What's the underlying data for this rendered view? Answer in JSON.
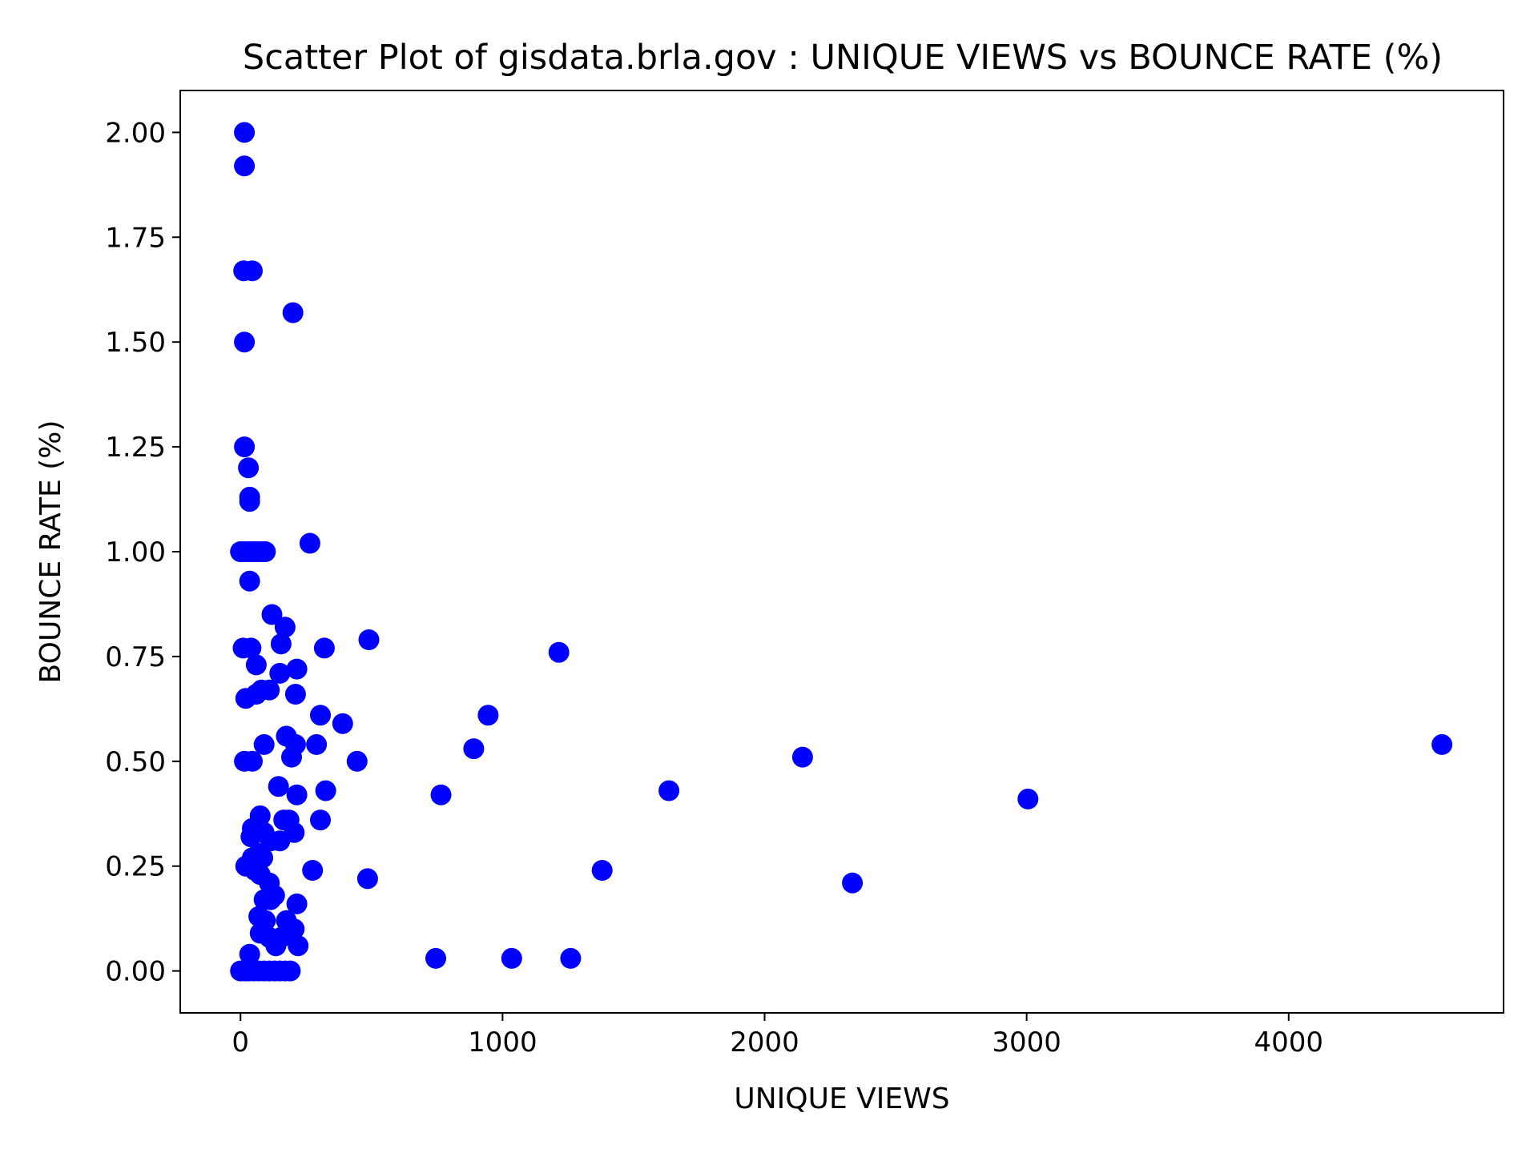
{
  "chart_data": {
    "type": "scatter",
    "title": "Scatter Plot of gisdata.brla.gov : UNIQUE VIEWS vs BOUNCE RATE (%)",
    "xlabel": "UNIQUE VIEWS",
    "ylabel": "BOUNCE RATE (%)",
    "xlim": [
      -230,
      4820
    ],
    "ylim": [
      -0.1,
      2.1
    ],
    "xticks": [
      0,
      1000,
      2000,
      3000,
      4000
    ],
    "xtick_labels": [
      "0",
      "1000",
      "2000",
      "3000",
      "4000"
    ],
    "yticks": [
      0.0,
      0.25,
      0.5,
      0.75,
      1.0,
      1.25,
      1.5,
      1.75,
      2.0
    ],
    "ytick_labels": [
      "0.00",
      "0.25",
      "0.50",
      "0.75",
      "1.00",
      "1.25",
      "1.50",
      "1.75",
      "2.00"
    ],
    "grid": false,
    "marker_color": "#0000ff",
    "points": [
      {
        "x": 15,
        "y": 2.0
      },
      {
        "x": 15,
        "y": 1.92
      },
      {
        "x": 12,
        "y": 1.67
      },
      {
        "x": 45,
        "y": 1.67
      },
      {
        "x": 200,
        "y": 1.57
      },
      {
        "x": 15,
        "y": 1.5
      },
      {
        "x": 15,
        "y": 1.25
      },
      {
        "x": 30,
        "y": 1.2
      },
      {
        "x": 35,
        "y": 1.13
      },
      {
        "x": 35,
        "y": 1.12
      },
      {
        "x": 265,
        "y": 1.02
      },
      {
        "x": 0,
        "y": 1.0
      },
      {
        "x": 10,
        "y": 1.0
      },
      {
        "x": 25,
        "y": 1.0
      },
      {
        "x": 40,
        "y": 1.0
      },
      {
        "x": 55,
        "y": 1.0
      },
      {
        "x": 70,
        "y": 1.0
      },
      {
        "x": 85,
        "y": 1.0
      },
      {
        "x": 95,
        "y": 1.0
      },
      {
        "x": 35,
        "y": 0.93
      },
      {
        "x": 120,
        "y": 0.85
      },
      {
        "x": 170,
        "y": 0.82
      },
      {
        "x": 490,
        "y": 0.79
      },
      {
        "x": 155,
        "y": 0.78
      },
      {
        "x": 10,
        "y": 0.77
      },
      {
        "x": 40,
        "y": 0.77
      },
      {
        "x": 320,
        "y": 0.77
      },
      {
        "x": 1215,
        "y": 0.76
      },
      {
        "x": 60,
        "y": 0.73
      },
      {
        "x": 215,
        "y": 0.72
      },
      {
        "x": 150,
        "y": 0.71
      },
      {
        "x": 110,
        "y": 0.67
      },
      {
        "x": 80,
        "y": 0.67
      },
      {
        "x": 60,
        "y": 0.66
      },
      {
        "x": 20,
        "y": 0.65
      },
      {
        "x": 210,
        "y": 0.66
      },
      {
        "x": 305,
        "y": 0.61
      },
      {
        "x": 945,
        "y": 0.61
      },
      {
        "x": 390,
        "y": 0.59
      },
      {
        "x": 175,
        "y": 0.56
      },
      {
        "x": 90,
        "y": 0.54
      },
      {
        "x": 210,
        "y": 0.54
      },
      {
        "x": 290,
        "y": 0.54
      },
      {
        "x": 4585,
        "y": 0.54
      },
      {
        "x": 890,
        "y": 0.53
      },
      {
        "x": 195,
        "y": 0.51
      },
      {
        "x": 2145,
        "y": 0.51
      },
      {
        "x": 15,
        "y": 0.5
      },
      {
        "x": 45,
        "y": 0.5
      },
      {
        "x": 445,
        "y": 0.5
      },
      {
        "x": 145,
        "y": 0.44
      },
      {
        "x": 325,
        "y": 0.43
      },
      {
        "x": 1635,
        "y": 0.43
      },
      {
        "x": 215,
        "y": 0.42
      },
      {
        "x": 765,
        "y": 0.42
      },
      {
        "x": 3005,
        "y": 0.41
      },
      {
        "x": 75,
        "y": 0.37
      },
      {
        "x": 165,
        "y": 0.36
      },
      {
        "x": 185,
        "y": 0.36
      },
      {
        "x": 305,
        "y": 0.36
      },
      {
        "x": 45,
        "y": 0.34
      },
      {
        "x": 60,
        "y": 0.34
      },
      {
        "x": 90,
        "y": 0.33
      },
      {
        "x": 205,
        "y": 0.33
      },
      {
        "x": 40,
        "y": 0.32
      },
      {
        "x": 115,
        "y": 0.31
      },
      {
        "x": 150,
        "y": 0.31
      },
      {
        "x": 70,
        "y": 0.28
      },
      {
        "x": 45,
        "y": 0.27
      },
      {
        "x": 85,
        "y": 0.27
      },
      {
        "x": 20,
        "y": 0.25
      },
      {
        "x": 55,
        "y": 0.24
      },
      {
        "x": 75,
        "y": 0.23
      },
      {
        "x": 275,
        "y": 0.24
      },
      {
        "x": 1380,
        "y": 0.24
      },
      {
        "x": 485,
        "y": 0.22
      },
      {
        "x": 110,
        "y": 0.21
      },
      {
        "x": 2335,
        "y": 0.21
      },
      {
        "x": 130,
        "y": 0.18
      },
      {
        "x": 90,
        "y": 0.17
      },
      {
        "x": 115,
        "y": 0.17
      },
      {
        "x": 215,
        "y": 0.16
      },
      {
        "x": 70,
        "y": 0.13
      },
      {
        "x": 95,
        "y": 0.12
      },
      {
        "x": 175,
        "y": 0.12
      },
      {
        "x": 205,
        "y": 0.1
      },
      {
        "x": 75,
        "y": 0.09
      },
      {
        "x": 110,
        "y": 0.08
      },
      {
        "x": 155,
        "y": 0.08
      },
      {
        "x": 135,
        "y": 0.06
      },
      {
        "x": 220,
        "y": 0.06
      },
      {
        "x": 35,
        "y": 0.04
      },
      {
        "x": 745,
        "y": 0.03
      },
      {
        "x": 1035,
        "y": 0.03
      },
      {
        "x": 1260,
        "y": 0.03
      },
      {
        "x": 0,
        "y": 0.0
      },
      {
        "x": 15,
        "y": 0.0
      },
      {
        "x": 30,
        "y": 0.0
      },
      {
        "x": 50,
        "y": 0.0
      },
      {
        "x": 70,
        "y": 0.0
      },
      {
        "x": 90,
        "y": 0.0
      },
      {
        "x": 110,
        "y": 0.0
      },
      {
        "x": 130,
        "y": 0.0
      },
      {
        "x": 150,
        "y": 0.0
      },
      {
        "x": 170,
        "y": 0.0
      },
      {
        "x": 190,
        "y": 0.0
      }
    ]
  }
}
